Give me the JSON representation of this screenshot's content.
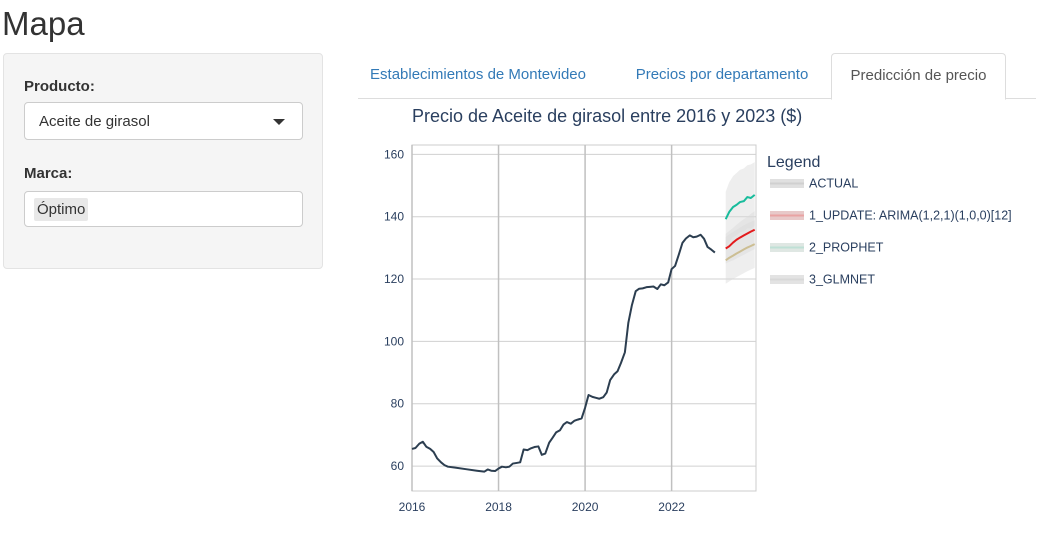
{
  "page": {
    "title": "Mapa"
  },
  "sidebar": {
    "product_label": "Producto:",
    "product_value": "Aceite de girasol",
    "brand_label": "Marca:",
    "brand_value": "Óptimo"
  },
  "tabs": [
    {
      "label": "Establecimientos de Montevideo",
      "active": false
    },
    {
      "label": "Precios por departamento",
      "active": false
    },
    {
      "label": "Predicción de precio",
      "active": true
    }
  ],
  "chart_data": {
    "type": "line",
    "title": "Precio de Aceite de girasol entre 2016 y 2023 ($)",
    "xlabel": "",
    "ylabel": "",
    "xlim": [
      2016.0,
      2023.95
    ],
    "ylim": [
      52,
      163
    ],
    "x_ticks": [
      2016,
      2018,
      2020,
      2022
    ],
    "y_ticks": [
      60,
      80,
      100,
      120,
      140,
      160
    ],
    "grid": true,
    "legend": {
      "title": "Legend",
      "position": "right",
      "entries": [
        "ACTUAL",
        "1_UPDATE: ARIMA(1,2,1)(1,0,0)[12]",
        "2_PROPHET",
        "3_GLMNET"
      ]
    },
    "colors": {
      "actual": "#2c3e50",
      "arima": "#e31a1c",
      "prophet": "#18bc9c",
      "glmnet": "#ccbe93",
      "band": "#d9d9d9"
    },
    "series": [
      {
        "name": "ACTUAL",
        "x": [
          2016.0,
          2016.08,
          2016.17,
          2016.25,
          2016.33,
          2016.42,
          2016.5,
          2016.58,
          2016.67,
          2016.75,
          2016.83,
          2017.0,
          2017.25,
          2017.5,
          2017.67,
          2017.75,
          2017.83,
          2017.92,
          2018.0,
          2018.08,
          2018.17,
          2018.25,
          2018.33,
          2018.42,
          2018.5,
          2018.58,
          2018.67,
          2018.75,
          2018.83,
          2018.92,
          2019.0,
          2019.08,
          2019.17,
          2019.25,
          2019.33,
          2019.42,
          2019.5,
          2019.58,
          2019.67,
          2019.75,
          2019.83,
          2019.92,
          2020.0,
          2020.08,
          2020.17,
          2020.25,
          2020.33,
          2020.42,
          2020.5,
          2020.58,
          2020.67,
          2020.75,
          2020.83,
          2020.92,
          2021.0,
          2021.08,
          2021.17,
          2021.25,
          2021.33,
          2021.42,
          2021.5,
          2021.58,
          2021.67,
          2021.75,
          2021.83,
          2021.92,
          2022.0,
          2022.08,
          2022.17,
          2022.25,
          2022.33,
          2022.42,
          2022.5,
          2022.58,
          2022.67,
          2022.75,
          2022.83,
          2022.92,
          2023.0
        ],
        "y": [
          65.5,
          65.8,
          67.2,
          67.8,
          66.2,
          65.5,
          64.5,
          62.5,
          61.2,
          60.3,
          59.8,
          59.5,
          59.0,
          58.5,
          58.2,
          58.9,
          58.5,
          58.4,
          59.2,
          59.8,
          59.6,
          59.8,
          60.8,
          61.0,
          61.2,
          65.3,
          65.1,
          65.7,
          66.1,
          66.3,
          63.6,
          64.0,
          67.5,
          69.1,
          70.8,
          71.5,
          73.3,
          74.1,
          73.6,
          74.5,
          74.9,
          75.3,
          78.7,
          82.8,
          82.2,
          81.9,
          81.6,
          82.1,
          83.6,
          87.6,
          89.4,
          90.4,
          93.1,
          96.5,
          106.0,
          111.5,
          116.1,
          116.9,
          117.0,
          117.4,
          117.5,
          117.6,
          116.8,
          118.3,
          118.0,
          118.9,
          123.2,
          124.2,
          128.0,
          131.6,
          133.0,
          134.0,
          133.4,
          133.6,
          134.2,
          132.9,
          130.3,
          129.4,
          128.5
        ]
      },
      {
        "name": "1_UPDATE: ARIMA(1,2,1)(1,0,0)[12]",
        "x": [
          2023.25,
          2023.33,
          2023.42,
          2023.5,
          2023.58,
          2023.67,
          2023.75,
          2023.83,
          2023.92
        ],
        "y": [
          129.8,
          130.5,
          131.7,
          132.6,
          133.3,
          134.0,
          134.6,
          135.2,
          135.8
        ],
        "lower": [
          125.0,
          125.5,
          126.0,
          126.6,
          127.2,
          127.8,
          128.4,
          129.0,
          129.6
        ],
        "upper": [
          134.5,
          135.4,
          136.4,
          137.4,
          138.3,
          139.2,
          140.0,
          140.9,
          141.8
        ]
      },
      {
        "name": "2_PROPHET",
        "x": [
          2023.25,
          2023.33,
          2023.42,
          2023.5,
          2023.58,
          2023.67,
          2023.75,
          2023.83,
          2023.92
        ],
        "y": [
          139.2,
          141.5,
          143.1,
          143.8,
          144.7,
          145.0,
          146.3,
          146.0,
          147.0
        ],
        "lower": [
          130.0,
          132.0,
          133.5,
          134.0,
          135.0,
          135.3,
          136.3,
          136.2,
          137.0
        ],
        "upper": [
          148.0,
          151.0,
          153.0,
          154.0,
          155.0,
          155.5,
          156.5,
          156.8,
          157.5
        ]
      },
      {
        "name": "3_GLMNET",
        "x": [
          2023.25,
          2023.33,
          2023.42,
          2023.5,
          2023.58,
          2023.67,
          2023.75,
          2023.83,
          2023.92
        ],
        "y": [
          126.0,
          126.8,
          127.5,
          128.2,
          128.8,
          129.5,
          130.1,
          130.6,
          131.2
        ],
        "lower": [
          118.5,
          119.2,
          120.0,
          120.6,
          121.2,
          121.9,
          122.5,
          123.0,
          123.6
        ],
        "upper": [
          133.5,
          134.3,
          135.1,
          135.8,
          136.5,
          137.2,
          137.8,
          138.3,
          138.9
        ]
      }
    ]
  }
}
